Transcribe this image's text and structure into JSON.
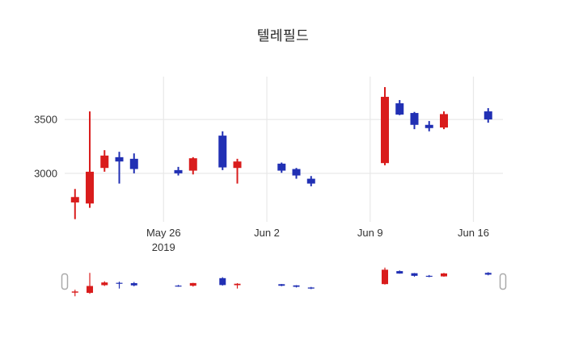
{
  "title": "텔레필드",
  "chart_data": {
    "type": "candlestick",
    "title": "텔레필드",
    "up_color": "#d91c1c",
    "down_color": "#2130b4",
    "grid_color": "#e8e8e8",
    "axis_text_color": "#333333",
    "background_color": "#ffffff",
    "slider_handle_border": "#aaaaaa",
    "grid": true,
    "legend": "none",
    "rangeslider": true,
    "ylim": [
      2550,
      3860
    ],
    "x_range_days": [
      -0.7,
      29
    ],
    "y_ticks": [
      3000,
      3500
    ],
    "x_ticks": [
      {
        "date": "2019-05-26",
        "label": "May 26",
        "sublabel": "2019"
      },
      {
        "date": "2019-06-02",
        "label": "Jun 2",
        "sublabel": ""
      },
      {
        "date": "2019-06-09",
        "label": "Jun 9",
        "sublabel": ""
      },
      {
        "date": "2019-06-16",
        "label": "Jun 16",
        "sublabel": ""
      }
    ],
    "series": [
      {
        "date": "2019-05-20",
        "open": 2730,
        "high": 2855,
        "low": 2575,
        "close": 2780
      },
      {
        "date": "2019-05-21",
        "open": 2720,
        "high": 3575,
        "low": 2680,
        "close": 3015
      },
      {
        "date": "2019-05-22",
        "open": 3050,
        "high": 3215,
        "low": 3015,
        "close": 3165
      },
      {
        "date": "2019-05-23",
        "open": 3150,
        "high": 3200,
        "low": 2905,
        "close": 3110
      },
      {
        "date": "2019-05-24",
        "open": 3135,
        "high": 3185,
        "low": 3000,
        "close": 3040
      },
      {
        "date": "2019-05-27",
        "open": 3030,
        "high": 3060,
        "low": 2980,
        "close": 3000
      },
      {
        "date": "2019-05-28",
        "open": 3025,
        "high": 3150,
        "low": 2990,
        "close": 3140
      },
      {
        "date": "2019-05-30",
        "open": 3350,
        "high": 3390,
        "low": 3030,
        "close": 3055
      },
      {
        "date": "2019-05-31",
        "open": 3050,
        "high": 3135,
        "low": 2905,
        "close": 3110
      },
      {
        "date": "2019-06-03",
        "open": 3090,
        "high": 3100,
        "low": 3005,
        "close": 3025
      },
      {
        "date": "2019-06-04",
        "open": 3040,
        "high": 3050,
        "low": 2950,
        "close": 2980
      },
      {
        "date": "2019-06-05",
        "open": 2950,
        "high": 2975,
        "low": 2880,
        "close": 2905
      },
      {
        "date": "2019-06-10",
        "open": 3095,
        "high": 3800,
        "low": 3075,
        "close": 3710
      },
      {
        "date": "2019-06-11",
        "open": 3650,
        "high": 3680,
        "low": 3540,
        "close": 3545
      },
      {
        "date": "2019-06-12",
        "open": 3560,
        "high": 3570,
        "low": 3410,
        "close": 3450
      },
      {
        "date": "2019-06-13",
        "open": 3450,
        "high": 3485,
        "low": 3390,
        "close": 3420
      },
      {
        "date": "2019-06-14",
        "open": 3425,
        "high": 3575,
        "low": 3410,
        "close": 3550
      },
      {
        "date": "2019-06-17",
        "open": 3575,
        "high": 3605,
        "low": 3470,
        "close": 3500
      }
    ]
  }
}
